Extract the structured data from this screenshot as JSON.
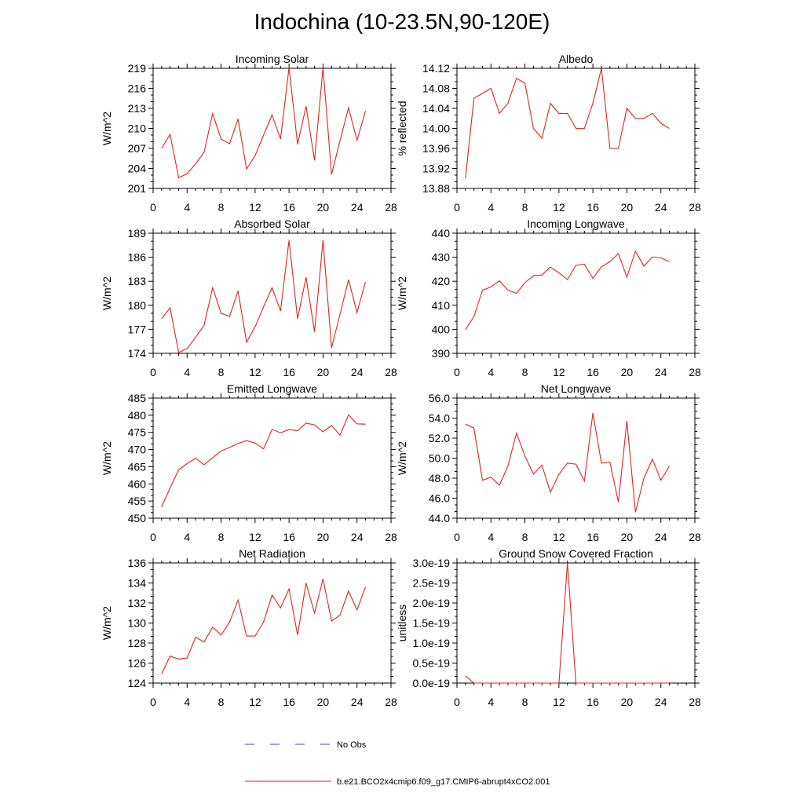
{
  "title": "Indochina (10-23.5N,90-120E)",
  "legend": [
    {
      "label": "No Obs",
      "color": "#3b4ba8",
      "dash": "dashed"
    },
    {
      "label": "b.e21.BCO2x4cmip6.f09_g17.CMIP6-abrupt4xCO2.001",
      "color": "#e8211a",
      "dash": "solid"
    }
  ],
  "line_color": "#e8211a",
  "chart_data": [
    {
      "type": "line",
      "title": "Incoming Solar",
      "ylabel": "W/m^2",
      "xlim": [
        0,
        28
      ],
      "xticks": [
        "0",
        "4",
        "8",
        "12",
        "16",
        "20",
        "24",
        "28"
      ],
      "ylim": [
        201,
        219
      ],
      "yticks": [
        "201",
        "204",
        "207",
        "210",
        "213",
        "216",
        "219"
      ],
      "x": [
        1,
        2,
        3,
        4,
        5,
        6,
        7,
        8,
        9,
        10,
        11,
        12,
        13,
        14,
        15,
        16,
        17,
        18,
        19,
        20,
        21,
        22,
        23,
        24,
        25
      ],
      "values": [
        207.0,
        209.1,
        202.6,
        203.2,
        204.7,
        206.4,
        212.2,
        208.4,
        207.7,
        211.4,
        203.9,
        205.9,
        209.0,
        212.0,
        208.4,
        219.1,
        207.6,
        213.3,
        205.2,
        219.1,
        203.1,
        208.2,
        213.1,
        208.2,
        212.6
      ]
    },
    {
      "type": "line",
      "title": "Albedo",
      "ylabel": "% reflected",
      "xlim": [
        0,
        28
      ],
      "xticks": [
        "0",
        "4",
        "8",
        "12",
        "16",
        "20",
        "24",
        "28"
      ],
      "ylim": [
        13.88,
        14.12
      ],
      "yticks": [
        "13.88",
        "13.92",
        "13.96",
        "14.00",
        "14.04",
        "14.08",
        "14.12"
      ],
      "x": [
        1,
        2,
        3,
        4,
        5,
        6,
        7,
        8,
        9,
        10,
        11,
        12,
        13,
        14,
        15,
        16,
        17,
        18,
        19,
        20,
        21,
        22,
        23,
        24,
        25
      ],
      "values": [
        13.9,
        14.06,
        14.07,
        14.08,
        14.03,
        14.05,
        14.1,
        14.09,
        14.0,
        13.98,
        14.05,
        14.03,
        14.03,
        14.0,
        14.0,
        14.05,
        14.12,
        13.96,
        13.96,
        14.04,
        14.02,
        14.02,
        14.03,
        14.01,
        14.0
      ]
    },
    {
      "type": "line",
      "title": "Absorbed Solar",
      "ylabel": "W/m^2",
      "xlim": [
        0,
        28
      ],
      "xticks": [
        "0",
        "4",
        "8",
        "12",
        "16",
        "20",
        "24",
        "28"
      ],
      "ylim": [
        174,
        189
      ],
      "yticks": [
        "174",
        "177",
        "180",
        "183",
        "186",
        "189"
      ],
      "x": [
        1,
        2,
        3,
        4,
        5,
        6,
        7,
        8,
        9,
        10,
        11,
        12,
        13,
        14,
        15,
        16,
        17,
        18,
        19,
        20,
        21,
        22,
        23,
        24,
        25
      ],
      "values": [
        178.3,
        179.7,
        174.1,
        174.6,
        176.0,
        177.5,
        182.2,
        179.0,
        178.6,
        181.8,
        175.4,
        177.3,
        179.8,
        182.2,
        179.3,
        188.1,
        178.3,
        183.5,
        176.7,
        188.1,
        174.7,
        178.9,
        183.2,
        179.1,
        182.9
      ]
    },
    {
      "type": "line",
      "title": "Incoming Longwave",
      "ylabel": "W/m^2",
      "xlim": [
        0,
        28
      ],
      "xticks": [
        "0",
        "4",
        "8",
        "12",
        "16",
        "20",
        "24",
        "28"
      ],
      "ylim": [
        390,
        440
      ],
      "yticks": [
        "390",
        "400",
        "410",
        "420",
        "430",
        "440"
      ],
      "x": [
        1,
        2,
        3,
        4,
        5,
        6,
        7,
        8,
        9,
        10,
        11,
        12,
        13,
        14,
        15,
        16,
        17,
        18,
        19,
        20,
        21,
        22,
        23,
        24,
        25
      ],
      "values": [
        399.8,
        405.3,
        416.3,
        417.6,
        420.2,
        416.3,
        415.0,
        419.4,
        422.3,
        422.6,
        425.9,
        423.5,
        420.7,
        426.6,
        427.1,
        421.2,
        426.0,
        428.1,
        431.5,
        421.7,
        432.5,
        426.3,
        430.1,
        429.7,
        428.2
      ]
    },
    {
      "type": "line",
      "title": "Emitted Longwave",
      "ylabel": "W/m^2",
      "xlim": [
        0,
        28
      ],
      "xticks": [
        "0",
        "4",
        "8",
        "12",
        "16",
        "20",
        "24",
        "28"
      ],
      "ylim": [
        450,
        485
      ],
      "yticks": [
        "450",
        "455",
        "460",
        "465",
        "470",
        "475",
        "480",
        "485"
      ],
      "x": [
        1,
        2,
        3,
        4,
        5,
        6,
        7,
        8,
        9,
        10,
        11,
        12,
        13,
        14,
        15,
        16,
        17,
        18,
        19,
        20,
        21,
        22,
        23,
        24,
        25
      ],
      "values": [
        453.3,
        458.8,
        464.1,
        465.9,
        467.5,
        465.6,
        467.6,
        469.6,
        470.6,
        471.8,
        472.6,
        471.9,
        470.2,
        475.9,
        474.9,
        475.8,
        475.5,
        477.7,
        477.2,
        475.2,
        477.0,
        474.2,
        480.1,
        477.5,
        477.4
      ]
    },
    {
      "type": "line",
      "title": "Net Longwave",
      "ylabel": "W/m^2",
      "xlim": [
        0,
        28
      ],
      "xticks": [
        "0",
        "4",
        "8",
        "12",
        "16",
        "20",
        "24",
        "28"
      ],
      "ylim": [
        44.0,
        56.0
      ],
      "yticks": [
        "44.0",
        "46.0",
        "48.0",
        "50.0",
        "52.0",
        "54.0",
        "56.0"
      ],
      "x": [
        1,
        2,
        3,
        4,
        5,
        6,
        7,
        8,
        9,
        10,
        11,
        12,
        13,
        14,
        15,
        16,
        17,
        18,
        19,
        20,
        21,
        22,
        23,
        24,
        25
      ],
      "values": [
        53.4,
        53.0,
        47.8,
        48.1,
        47.3,
        49.2,
        52.5,
        50.2,
        48.4,
        49.3,
        46.6,
        48.4,
        49.5,
        49.4,
        47.7,
        54.5,
        49.5,
        49.6,
        45.6,
        53.7,
        44.6,
        48.0,
        49.9,
        47.8,
        49.2
      ]
    },
    {
      "type": "line",
      "title": "Net Radiation",
      "ylabel": "W/m^2",
      "xlim": [
        0,
        28
      ],
      "xticks": [
        "0",
        "4",
        "8",
        "12",
        "16",
        "20",
        "24",
        "28"
      ],
      "ylim": [
        124,
        136
      ],
      "yticks": [
        "124",
        "126",
        "128",
        "130",
        "132",
        "134",
        "136"
      ],
      "x": [
        1,
        2,
        3,
        4,
        5,
        6,
        7,
        8,
        9,
        10,
        11,
        12,
        13,
        14,
        15,
        16,
        17,
        18,
        19,
        20,
        21,
        22,
        23,
        24,
        25
      ],
      "values": [
        124.9,
        126.7,
        126.4,
        126.5,
        128.6,
        128.1,
        129.6,
        128.8,
        130.1,
        132.3,
        128.7,
        128.7,
        130.1,
        132.8,
        131.5,
        133.4,
        128.8,
        134.0,
        131.0,
        134.4,
        130.2,
        130.8,
        133.2,
        131.3,
        133.6
      ]
    },
    {
      "type": "line",
      "title": "Ground Snow Covered Fraction",
      "ylabel": "unitless",
      "xlim": [
        0,
        28
      ],
      "xticks": [
        "0",
        "4",
        "8",
        "12",
        "16",
        "20",
        "24",
        "28"
      ],
      "ylim": [
        0,
        3.0
      ],
      "yticks": [
        "0.0e-19",
        "0.5e-19",
        "1.0e-19",
        "1.5e-19",
        "2.0e-19",
        "2.5e-19",
        "3.0e-19"
      ],
      "x": [
        1,
        2,
        3,
        4,
        5,
        6,
        7,
        8,
        9,
        10,
        11,
        12,
        13,
        14,
        15,
        16,
        17,
        18,
        19,
        20,
        21,
        22,
        23,
        24,
        25
      ],
      "values": [
        0.18,
        0,
        0,
        0,
        0,
        0,
        0,
        0,
        0,
        0,
        0,
        0,
        3.0,
        0,
        0,
        0,
        0,
        0,
        0,
        0,
        0,
        0,
        0,
        0,
        0
      ]
    }
  ]
}
